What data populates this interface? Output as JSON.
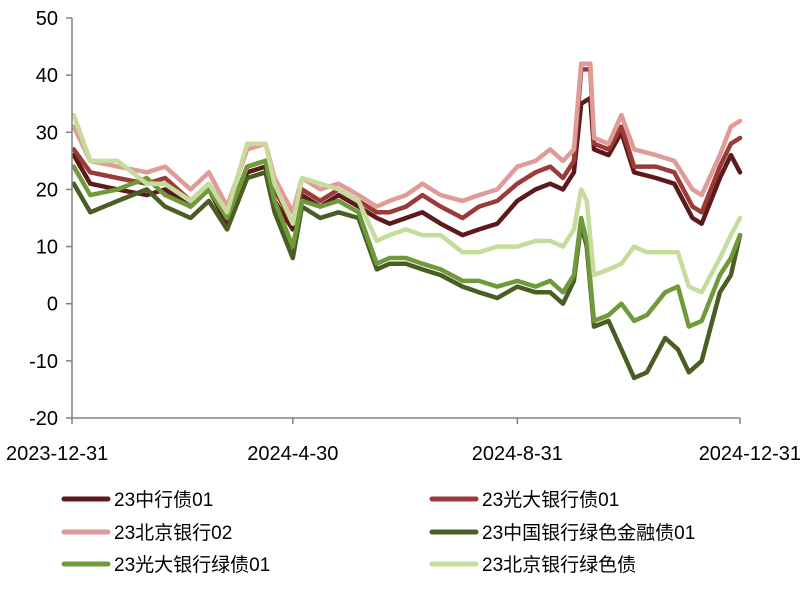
{
  "chart_data": {
    "type": "line",
    "title": "",
    "xlabel": "",
    "ylabel": "",
    "ylim": [
      -20,
      50
    ],
    "yticks": [
      -20,
      -10,
      0,
      10,
      20,
      30,
      40,
      50
    ],
    "xticks": [
      "2023-12-31",
      "2024-4-30",
      "2024-8-31",
      "2024-12-31"
    ],
    "xlim": [
      "2023-12-31",
      "2024-12-31"
    ],
    "grid": false,
    "legend_position": "bottom",
    "series": [
      {
        "name": "23中行债01",
        "color": "#5c1a1b",
        "points": [
          [
            "2024-01-01",
            26
          ],
          [
            "2024-01-10",
            21
          ],
          [
            "2024-01-25",
            20
          ],
          [
            "2024-02-10",
            19
          ],
          [
            "2024-02-20",
            20
          ],
          [
            "2024-03-05",
            17
          ],
          [
            "2024-03-15",
            20
          ],
          [
            "2024-03-25",
            14
          ],
          [
            "2024-04-05",
            23
          ],
          [
            "2024-04-15",
            24
          ],
          [
            "2024-04-20",
            18
          ],
          [
            "2024-04-30",
            13
          ],
          [
            "2024-05-05",
            19
          ],
          [
            "2024-05-15",
            17
          ],
          [
            "2024-05-25",
            19
          ],
          [
            "2024-06-05",
            17
          ],
          [
            "2024-06-15",
            15
          ],
          [
            "2024-06-22",
            14
          ],
          [
            "2024-07-01",
            15
          ],
          [
            "2024-07-10",
            16
          ],
          [
            "2024-07-20",
            14
          ],
          [
            "2024-08-01",
            12
          ],
          [
            "2024-08-10",
            13
          ],
          [
            "2024-08-20",
            14
          ],
          [
            "2024-08-31",
            18
          ],
          [
            "2024-09-10",
            20
          ],
          [
            "2024-09-18",
            21
          ],
          [
            "2024-09-25",
            20
          ],
          [
            "2024-10-01",
            23
          ],
          [
            "2024-10-05",
            35
          ],
          [
            "2024-10-10",
            36
          ],
          [
            "2024-10-12",
            27
          ],
          [
            "2024-10-20",
            26
          ],
          [
            "2024-10-27",
            30
          ],
          [
            "2024-11-03",
            23
          ],
          [
            "2024-11-15",
            22
          ],
          [
            "2024-11-25",
            21
          ],
          [
            "2024-12-05",
            15
          ],
          [
            "2024-12-10",
            14
          ],
          [
            "2024-12-20",
            22
          ],
          [
            "2024-12-26",
            26
          ],
          [
            "2024-12-31",
            23
          ]
        ]
      },
      {
        "name": "23光大银行债01",
        "color": "#9b3a37",
        "points": [
          [
            "2024-01-01",
            27
          ],
          [
            "2024-01-10",
            23
          ],
          [
            "2024-01-25",
            22
          ],
          [
            "2024-02-10",
            21
          ],
          [
            "2024-02-20",
            22
          ],
          [
            "2024-03-05",
            18
          ],
          [
            "2024-03-15",
            21
          ],
          [
            "2024-03-25",
            15
          ],
          [
            "2024-04-05",
            24
          ],
          [
            "2024-04-15",
            25
          ],
          [
            "2024-04-20",
            20
          ],
          [
            "2024-04-30",
            14
          ],
          [
            "2024-05-05",
            20
          ],
          [
            "2024-05-15",
            18
          ],
          [
            "2024-05-25",
            20
          ],
          [
            "2024-06-05",
            18
          ],
          [
            "2024-06-15",
            16
          ],
          [
            "2024-06-22",
            16
          ],
          [
            "2024-07-01",
            17
          ],
          [
            "2024-07-10",
            19
          ],
          [
            "2024-07-20",
            17
          ],
          [
            "2024-08-01",
            15
          ],
          [
            "2024-08-10",
            17
          ],
          [
            "2024-08-20",
            18
          ],
          [
            "2024-08-31",
            21
          ],
          [
            "2024-09-10",
            23
          ],
          [
            "2024-09-18",
            24
          ],
          [
            "2024-09-25",
            22
          ],
          [
            "2024-10-01",
            25
          ],
          [
            "2024-10-05",
            41
          ],
          [
            "2024-10-10",
            41
          ],
          [
            "2024-10-12",
            28
          ],
          [
            "2024-10-20",
            27
          ],
          [
            "2024-10-27",
            31
          ],
          [
            "2024-11-03",
            24
          ],
          [
            "2024-11-15",
            24
          ],
          [
            "2024-11-25",
            23
          ],
          [
            "2024-12-05",
            17
          ],
          [
            "2024-12-10",
            16
          ],
          [
            "2024-12-20",
            24
          ],
          [
            "2024-12-26",
            28
          ],
          [
            "2024-12-31",
            29
          ]
        ]
      },
      {
        "name": "23北京银行02",
        "color": "#e09a98",
        "points": [
          [
            "2024-01-01",
            31
          ],
          [
            "2024-01-10",
            25
          ],
          [
            "2024-01-25",
            24
          ],
          [
            "2024-02-10",
            23
          ],
          [
            "2024-02-20",
            24
          ],
          [
            "2024-03-05",
            20
          ],
          [
            "2024-03-15",
            23
          ],
          [
            "2024-03-25",
            17
          ],
          [
            "2024-04-05",
            27
          ],
          [
            "2024-04-15",
            28
          ],
          [
            "2024-04-20",
            22
          ],
          [
            "2024-04-30",
            16
          ],
          [
            "2024-05-05",
            22
          ],
          [
            "2024-05-15",
            20
          ],
          [
            "2024-05-25",
            21
          ],
          [
            "2024-06-05",
            19
          ],
          [
            "2024-06-15",
            17
          ],
          [
            "2024-06-22",
            18
          ],
          [
            "2024-07-01",
            19
          ],
          [
            "2024-07-10",
            21
          ],
          [
            "2024-07-20",
            19
          ],
          [
            "2024-08-01",
            18
          ],
          [
            "2024-08-10",
            19
          ],
          [
            "2024-08-20",
            20
          ],
          [
            "2024-08-31",
            24
          ],
          [
            "2024-09-10",
            25
          ],
          [
            "2024-09-18",
            27
          ],
          [
            "2024-09-25",
            25
          ],
          [
            "2024-10-01",
            27
          ],
          [
            "2024-10-05",
            42
          ],
          [
            "2024-10-10",
            42
          ],
          [
            "2024-10-12",
            29
          ],
          [
            "2024-10-20",
            28
          ],
          [
            "2024-10-27",
            33
          ],
          [
            "2024-11-03",
            27
          ],
          [
            "2024-11-15",
            26
          ],
          [
            "2024-11-25",
            25
          ],
          [
            "2024-12-05",
            20
          ],
          [
            "2024-12-10",
            19
          ],
          [
            "2024-12-20",
            26
          ],
          [
            "2024-12-26",
            31
          ],
          [
            "2024-12-31",
            32
          ]
        ]
      },
      {
        "name": "23中国银行绿色金融债01",
        "color": "#4a5e23",
        "points": [
          [
            "2024-01-01",
            21
          ],
          [
            "2024-01-10",
            16
          ],
          [
            "2024-01-25",
            18
          ],
          [
            "2024-02-10",
            20
          ],
          [
            "2024-02-20",
            17
          ],
          [
            "2024-03-05",
            15
          ],
          [
            "2024-03-15",
            18
          ],
          [
            "2024-03-25",
            13
          ],
          [
            "2024-04-05",
            22
          ],
          [
            "2024-04-15",
            23
          ],
          [
            "2024-04-20",
            16
          ],
          [
            "2024-04-30",
            8
          ],
          [
            "2024-05-05",
            17
          ],
          [
            "2024-05-15",
            15
          ],
          [
            "2024-05-25",
            16
          ],
          [
            "2024-06-05",
            15
          ],
          [
            "2024-06-15",
            6
          ],
          [
            "2024-06-22",
            7
          ],
          [
            "2024-07-01",
            7
          ],
          [
            "2024-07-10",
            6
          ],
          [
            "2024-07-20",
            5
          ],
          [
            "2024-08-01",
            3
          ],
          [
            "2024-08-10",
            2
          ],
          [
            "2024-08-20",
            1
          ],
          [
            "2024-08-31",
            3
          ],
          [
            "2024-09-10",
            2
          ],
          [
            "2024-09-18",
            2
          ],
          [
            "2024-09-25",
            0
          ],
          [
            "2024-10-01",
            4
          ],
          [
            "2024-10-05",
            14
          ],
          [
            "2024-10-08",
            10
          ],
          [
            "2024-10-12",
            -4
          ],
          [
            "2024-10-20",
            -3
          ],
          [
            "2024-10-27",
            -8
          ],
          [
            "2024-11-03",
            -13
          ],
          [
            "2024-11-10",
            -12
          ],
          [
            "2024-11-20",
            -6
          ],
          [
            "2024-11-27",
            -8
          ],
          [
            "2024-12-03",
            -12
          ],
          [
            "2024-12-10",
            -10
          ],
          [
            "2024-12-20",
            2
          ],
          [
            "2024-12-26",
            5
          ],
          [
            "2024-12-31",
            12
          ]
        ]
      },
      {
        "name": "23光大银行绿债01",
        "color": "#6f9a3a",
        "points": [
          [
            "2024-01-01",
            24
          ],
          [
            "2024-01-10",
            19
          ],
          [
            "2024-01-25",
            20
          ],
          [
            "2024-02-10",
            22
          ],
          [
            "2024-02-20",
            19
          ],
          [
            "2024-03-05",
            17
          ],
          [
            "2024-03-15",
            20
          ],
          [
            "2024-03-25",
            15
          ],
          [
            "2024-04-05",
            24
          ],
          [
            "2024-04-15",
            25
          ],
          [
            "2024-04-20",
            18
          ],
          [
            "2024-04-30",
            10
          ],
          [
            "2024-05-05",
            18
          ],
          [
            "2024-05-15",
            17
          ],
          [
            "2024-05-25",
            18
          ],
          [
            "2024-06-05",
            16
          ],
          [
            "2024-06-15",
            7
          ],
          [
            "2024-06-22",
            8
          ],
          [
            "2024-07-01",
            8
          ],
          [
            "2024-07-10",
            7
          ],
          [
            "2024-07-20",
            6
          ],
          [
            "2024-08-01",
            4
          ],
          [
            "2024-08-10",
            4
          ],
          [
            "2024-08-20",
            3
          ],
          [
            "2024-08-31",
            4
          ],
          [
            "2024-09-10",
            3
          ],
          [
            "2024-09-18",
            4
          ],
          [
            "2024-09-25",
            2
          ],
          [
            "2024-10-01",
            5
          ],
          [
            "2024-10-05",
            15
          ],
          [
            "2024-10-08",
            11
          ],
          [
            "2024-10-12",
            -3
          ],
          [
            "2024-10-20",
            -2
          ],
          [
            "2024-10-27",
            0
          ],
          [
            "2024-11-03",
            -3
          ],
          [
            "2024-11-10",
            -2
          ],
          [
            "2024-11-20",
            2
          ],
          [
            "2024-11-27",
            3
          ],
          [
            "2024-12-03",
            -4
          ],
          [
            "2024-12-10",
            -3
          ],
          [
            "2024-12-20",
            5
          ],
          [
            "2024-12-26",
            8
          ],
          [
            "2024-12-31",
            12
          ]
        ]
      },
      {
        "name": "23北京银行绿色债",
        "color": "#c5dc9c",
        "points": [
          [
            "2024-01-01",
            33
          ],
          [
            "2024-01-10",
            25
          ],
          [
            "2024-01-25",
            25
          ],
          [
            "2024-02-10",
            21
          ],
          [
            "2024-02-20",
            21
          ],
          [
            "2024-03-05",
            18
          ],
          [
            "2024-03-15",
            21
          ],
          [
            "2024-03-25",
            16
          ],
          [
            "2024-04-05",
            28
          ],
          [
            "2024-04-15",
            28
          ],
          [
            "2024-04-20",
            21
          ],
          [
            "2024-04-30",
            14
          ],
          [
            "2024-05-05",
            22
          ],
          [
            "2024-05-15",
            21
          ],
          [
            "2024-05-25",
            20
          ],
          [
            "2024-06-05",
            18
          ],
          [
            "2024-06-15",
            11
          ],
          [
            "2024-06-22",
            12
          ],
          [
            "2024-07-01",
            13
          ],
          [
            "2024-07-10",
            12
          ],
          [
            "2024-07-20",
            12
          ],
          [
            "2024-08-01",
            9
          ],
          [
            "2024-08-10",
            9
          ],
          [
            "2024-08-20",
            10
          ],
          [
            "2024-08-31",
            10
          ],
          [
            "2024-09-10",
            11
          ],
          [
            "2024-09-18",
            11
          ],
          [
            "2024-09-25",
            10
          ],
          [
            "2024-10-01",
            13
          ],
          [
            "2024-10-05",
            20
          ],
          [
            "2024-10-08",
            18
          ],
          [
            "2024-10-12",
            5
          ],
          [
            "2024-10-20",
            6
          ],
          [
            "2024-10-27",
            7
          ],
          [
            "2024-11-03",
            10
          ],
          [
            "2024-11-10",
            9
          ],
          [
            "2024-11-20",
            9
          ],
          [
            "2024-11-27",
            9
          ],
          [
            "2024-12-03",
            3
          ],
          [
            "2024-12-10",
            2
          ],
          [
            "2024-12-20",
            8
          ],
          [
            "2024-12-26",
            12
          ],
          [
            "2024-12-31",
            15
          ]
        ]
      }
    ]
  }
}
